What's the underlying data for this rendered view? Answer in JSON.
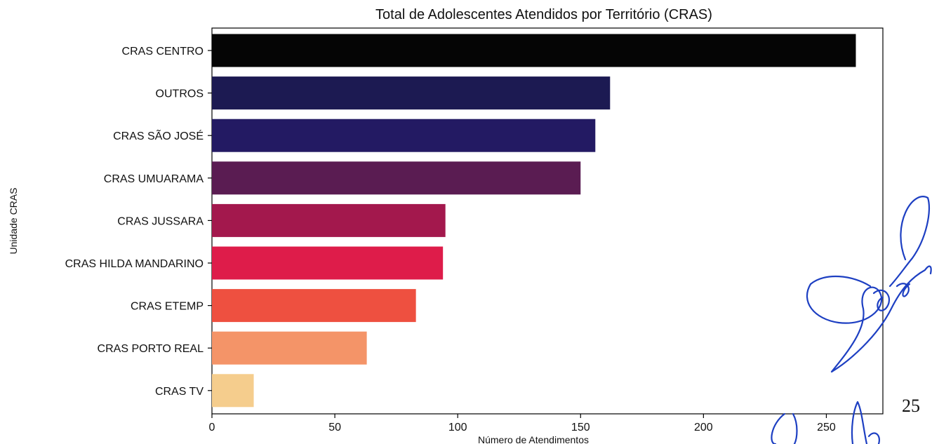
{
  "chart_data": {
    "type": "bar",
    "orientation": "horizontal",
    "title": "Total de Adolescentes Atendidos por Território (CRAS)",
    "xlabel": "Número de Atendimentos",
    "ylabel": "Unidade CRAS",
    "xlim": [
      0,
      273
    ],
    "xticks": [
      0,
      50,
      100,
      150,
      200,
      250
    ],
    "grid": false,
    "categories": [
      "CRAS CENTRO",
      "OUTROS",
      "CRAS SÃO JOSÉ",
      "CRAS UMUARAMA",
      "CRAS JUSSARA",
      "CRAS HILDA MANDARINO",
      "CRAS ETEMP",
      "CRAS PORTO REAL",
      "CRAS TV"
    ],
    "values": [
      262,
      162,
      156,
      150,
      95,
      94,
      83,
      63,
      17
    ],
    "colors": [
      "#050505",
      "#1c1a52",
      "#231a63",
      "#5a1c52",
      "#a3184d",
      "#de1c4a",
      "#ee5040",
      "#f49468",
      "#f5cd8d"
    ]
  },
  "page_number": "25",
  "signature_color": "#1d3fc2"
}
